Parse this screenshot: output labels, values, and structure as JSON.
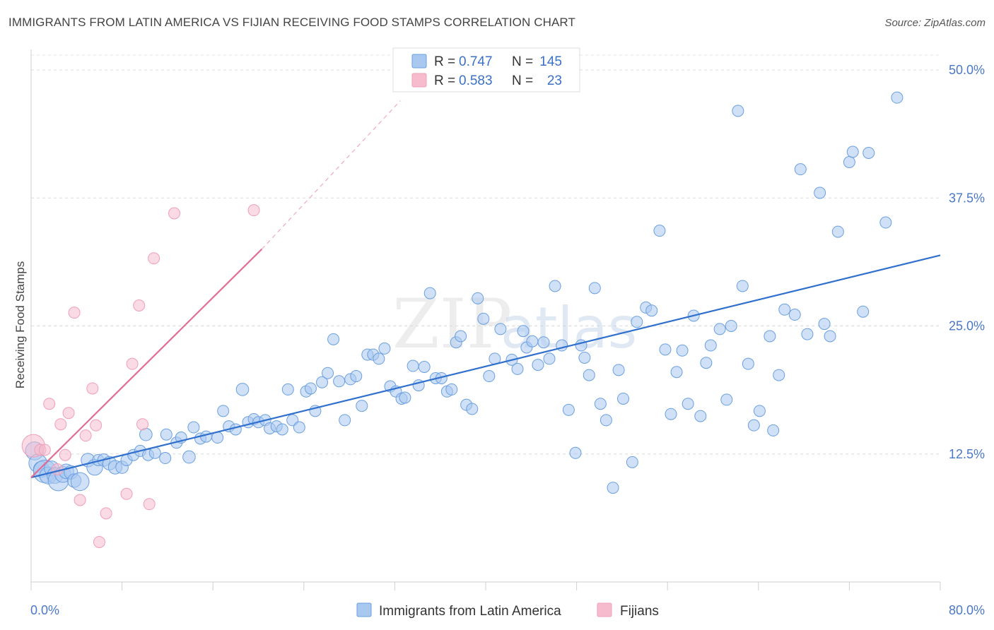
{
  "title": "IMMIGRANTS FROM LATIN AMERICA VS FIJIAN RECEIVING FOOD STAMPS CORRELATION CHART",
  "source": "Source: ZipAtlas.com",
  "watermark": {
    "zip": "ZIP",
    "atlas": "atlas"
  },
  "legend": {
    "rows": [
      {
        "r_label": "R =",
        "r_value": "0.747",
        "n_label": "N =",
        "n_value": "145",
        "color": "#a9c8f0"
      },
      {
        "r_label": "R =",
        "r_value": "0.583",
        "n_label": "N =",
        "n_value": "23",
        "color": "#f6bccd"
      }
    ]
  },
  "bottom_legend": [
    {
      "label": "Immigrants from Latin America",
      "color": "#a9c8f0"
    },
    {
      "label": "Fijians",
      "color": "#f6bccd"
    }
  ],
  "chart_data": {
    "type": "scatter",
    "title": "IMMIGRANTS FROM LATIN AMERICA VS FIJIAN RECEIVING FOOD STAMPS CORRELATION CHART",
    "xlabel": "",
    "ylabel": "Receiving Food Stamps",
    "xlim": [
      0,
      80
    ],
    "ylim": [
      0,
      52
    ],
    "x_tick_labels": [
      "0.0%",
      "80.0%"
    ],
    "y_ticks": [
      12.5,
      25.0,
      37.5,
      50.0
    ],
    "y_tick_labels": [
      "12.5%",
      "25.0%",
      "37.5%",
      "50.0%"
    ],
    "grid": true,
    "legend_position": "top-center",
    "series": [
      {
        "name": "Immigrants from Latin America",
        "color": "#6a9fe0",
        "fill": "#a9c8f0",
        "trend": {
          "x": [
            0,
            80
          ],
          "y": [
            10.2,
            31.9
          ],
          "color": "#2f6fce"
        },
        "points": [
          [
            0.3,
            12.8,
            1.6
          ],
          [
            0.6,
            11.6,
            1.6
          ],
          [
            0.9,
            11.0,
            1.4
          ],
          [
            1.2,
            10.8,
            2.0
          ],
          [
            1.5,
            10.4,
            1.5
          ],
          [
            1.8,
            11.1,
            1.3
          ],
          [
            2.1,
            10.4,
            1.4
          ],
          [
            2.4,
            9.9,
            1.8
          ],
          [
            2.8,
            10.5,
            1.4
          ],
          [
            3.1,
            10.8,
            1.3
          ],
          [
            3.5,
            10.7,
            1.2
          ],
          [
            3.8,
            9.9,
            1.2
          ],
          [
            4.3,
            9.8,
            1.6
          ],
          [
            5.0,
            11.9,
            1.2
          ],
          [
            5.6,
            11.2,
            1.4
          ],
          [
            5.9,
            11.9,
            1.0
          ],
          [
            6.4,
            11.9,
            1.1
          ],
          [
            6.9,
            11.6,
            1.2
          ],
          [
            7.4,
            11.2,
            1.2
          ],
          [
            8.0,
            11.2,
            1.1
          ],
          [
            8.4,
            11.9,
            1.0
          ],
          [
            9.0,
            12.4,
            1.0
          ],
          [
            9.6,
            12.8,
            1.0
          ],
          [
            10.3,
            12.4,
            1.0
          ],
          [
            10.9,
            12.6,
            1.0
          ],
          [
            11.8,
            12.1,
            1.0
          ],
          [
            10.1,
            14.4,
            1.1
          ],
          [
            11.9,
            14.4,
            1.0
          ],
          [
            12.8,
            13.6,
            1.0
          ],
          [
            13.2,
            14.1,
            1.0
          ],
          [
            13.9,
            12.2,
            1.1
          ],
          [
            14.3,
            15.1,
            1.0
          ],
          [
            14.9,
            14.0,
            1.0
          ],
          [
            15.4,
            14.2,
            1.0
          ],
          [
            16.4,
            14.1,
            1.0
          ],
          [
            16.9,
            16.7,
            1.0
          ],
          [
            17.4,
            15.2,
            1.0
          ],
          [
            18.0,
            14.9,
            1.0
          ],
          [
            18.6,
            18.8,
            1.1
          ],
          [
            19.1,
            15.6,
            1.0
          ],
          [
            19.6,
            15.9,
            1.0
          ],
          [
            20.0,
            15.6,
            1.0
          ],
          [
            20.6,
            15.8,
            1.0
          ],
          [
            21.0,
            15.0,
            1.0
          ],
          [
            21.6,
            15.2,
            1.0
          ],
          [
            22.1,
            14.9,
            1.0
          ],
          [
            22.6,
            18.8,
            1.0
          ],
          [
            23.0,
            15.8,
            1.0
          ],
          [
            23.6,
            15.1,
            1.0
          ],
          [
            24.2,
            18.6,
            1.0
          ],
          [
            24.6,
            18.9,
            1.0
          ],
          [
            25.0,
            16.7,
            1.0
          ],
          [
            25.6,
            19.5,
            1.0
          ],
          [
            26.1,
            20.4,
            1.0
          ],
          [
            26.6,
            23.7,
            1.0
          ],
          [
            27.1,
            19.6,
            1.0
          ],
          [
            27.6,
            15.8,
            1.0
          ],
          [
            28.1,
            19.8,
            1.0
          ],
          [
            28.6,
            20.1,
            1.0
          ],
          [
            29.1,
            17.2,
            1.0
          ],
          [
            29.6,
            22.2,
            1.0
          ],
          [
            30.1,
            22.2,
            1.0
          ],
          [
            30.6,
            21.8,
            1.0
          ],
          [
            31.1,
            22.8,
            1.0
          ],
          [
            31.6,
            19.1,
            1.0
          ],
          [
            32.1,
            18.6,
            1.0
          ],
          [
            32.6,
            17.9,
            1.0
          ],
          [
            32.9,
            18.0,
            1.0
          ],
          [
            33.6,
            21.1,
            1.0
          ],
          [
            34.1,
            19.2,
            1.0
          ],
          [
            34.6,
            21.0,
            1.0
          ],
          [
            35.1,
            28.2,
            1.0
          ],
          [
            35.6,
            19.9,
            1.0
          ],
          [
            36.1,
            19.9,
            1.0
          ],
          [
            36.6,
            18.6,
            1.0
          ],
          [
            37.0,
            18.8,
            1.0
          ],
          [
            37.4,
            23.4,
            1.0
          ],
          [
            37.8,
            24.0,
            1.0
          ],
          [
            38.3,
            17.3,
            1.0
          ],
          [
            38.8,
            16.9,
            1.0
          ],
          [
            39.3,
            27.7,
            1.0
          ],
          [
            39.8,
            25.7,
            1.0
          ],
          [
            40.3,
            20.1,
            1.0
          ],
          [
            40.8,
            21.8,
            1.0
          ],
          [
            41.3,
            24.7,
            1.0
          ],
          [
            42.3,
            21.7,
            1.0
          ],
          [
            42.8,
            20.8,
            1.0
          ],
          [
            43.3,
            24.5,
            1.0
          ],
          [
            43.6,
            22.9,
            1.0
          ],
          [
            44.1,
            23.5,
            1.0
          ],
          [
            44.6,
            21.2,
            1.0
          ],
          [
            45.1,
            23.4,
            1.0
          ],
          [
            45.6,
            21.8,
            1.0
          ],
          [
            46.1,
            28.9,
            1.0
          ],
          [
            46.7,
            23.1,
            1.0
          ],
          [
            47.3,
            16.8,
            1.0
          ],
          [
            47.9,
            12.6,
            1.0
          ],
          [
            48.4,
            23.1,
            1.0
          ],
          [
            48.7,
            21.9,
            1.0
          ],
          [
            49.1,
            20.2,
            1.0
          ],
          [
            49.6,
            28.7,
            1.0
          ],
          [
            50.1,
            17.4,
            1.0
          ],
          [
            50.6,
            15.8,
            1.0
          ],
          [
            51.2,
            9.2,
            1.0
          ],
          [
            51.7,
            20.7,
            1.0
          ],
          [
            52.1,
            17.9,
            1.0
          ],
          [
            52.9,
            11.7,
            1.0
          ],
          [
            53.3,
            25.4,
            1.0
          ],
          [
            54.1,
            26.8,
            1.0
          ],
          [
            54.6,
            26.5,
            1.0
          ],
          [
            55.3,
            34.3,
            1.0
          ],
          [
            55.8,
            22.7,
            1.0
          ],
          [
            56.3,
            16.4,
            1.0
          ],
          [
            56.8,
            20.5,
            1.0
          ],
          [
            57.3,
            22.6,
            1.0
          ],
          [
            57.8,
            17.4,
            1.0
          ],
          [
            58.3,
            26.0,
            1.0
          ],
          [
            58.9,
            16.2,
            1.0
          ],
          [
            59.4,
            21.4,
            1.0
          ],
          [
            59.8,
            23.1,
            1.0
          ],
          [
            60.6,
            24.7,
            1.0
          ],
          [
            61.2,
            17.8,
            1.0
          ],
          [
            61.6,
            25.0,
            1.0
          ],
          [
            62.2,
            46.0,
            1.0
          ],
          [
            62.6,
            28.9,
            1.0
          ],
          [
            63.1,
            21.3,
            1.0
          ],
          [
            63.6,
            15.3,
            1.0
          ],
          [
            64.1,
            16.7,
            1.0
          ],
          [
            65.0,
            24.0,
            1.0
          ],
          [
            65.3,
            14.8,
            1.0
          ],
          [
            65.8,
            20.2,
            1.0
          ],
          [
            66.3,
            26.6,
            1.0
          ],
          [
            67.2,
            26.1,
            1.0
          ],
          [
            67.7,
            40.3,
            1.0
          ],
          [
            68.3,
            24.2,
            1.0
          ],
          [
            69.4,
            38.0,
            1.0
          ],
          [
            69.8,
            25.2,
            1.0
          ],
          [
            70.3,
            24.0,
            1.0
          ],
          [
            71.0,
            34.2,
            1.0
          ],
          [
            72.0,
            41.0,
            1.0
          ],
          [
            72.3,
            42.0,
            1.0
          ],
          [
            73.2,
            26.4,
            1.0
          ],
          [
            73.7,
            41.9,
            1.0
          ],
          [
            75.2,
            35.1,
            1.0
          ],
          [
            76.2,
            47.3,
            1.0
          ]
        ]
      },
      {
        "name": "Fijians",
        "color": "#ef9fb7",
        "fill": "#f6bccd",
        "trend": {
          "x": [
            0,
            20.3
          ],
          "y": [
            10.2,
            32.5
          ],
          "color": "#e16c94",
          "extension": {
            "x": [
              20.3,
              32.5
            ],
            "y": [
              32.5,
              47.0
            ]
          }
        },
        "points": [
          [
            0.2,
            13.3,
            2.0
          ],
          [
            0.8,
            12.9,
            1.0
          ],
          [
            1.2,
            12.9,
            1.0
          ],
          [
            1.6,
            17.4,
            1.0
          ],
          [
            2.3,
            11.0,
            1.0
          ],
          [
            2.6,
            15.4,
            1.0
          ],
          [
            3.0,
            12.4,
            1.0
          ],
          [
            3.3,
            16.5,
            1.0
          ],
          [
            3.8,
            26.3,
            1.0
          ],
          [
            4.3,
            8.0,
            1.0
          ],
          [
            4.8,
            14.3,
            1.0
          ],
          [
            5.4,
            18.9,
            1.0
          ],
          [
            5.7,
            15.3,
            1.0
          ],
          [
            6.0,
            3.9,
            1.0
          ],
          [
            6.6,
            6.7,
            1.0
          ],
          [
            8.4,
            8.6,
            1.0
          ],
          [
            8.9,
            21.3,
            1.0
          ],
          [
            9.5,
            27.0,
            1.0
          ],
          [
            9.8,
            15.4,
            1.0
          ],
          [
            10.4,
            7.6,
            1.0
          ],
          [
            10.8,
            31.6,
            1.0
          ],
          [
            12.6,
            36.0,
            1.0
          ],
          [
            19.6,
            36.3,
            1.0
          ]
        ]
      }
    ]
  }
}
